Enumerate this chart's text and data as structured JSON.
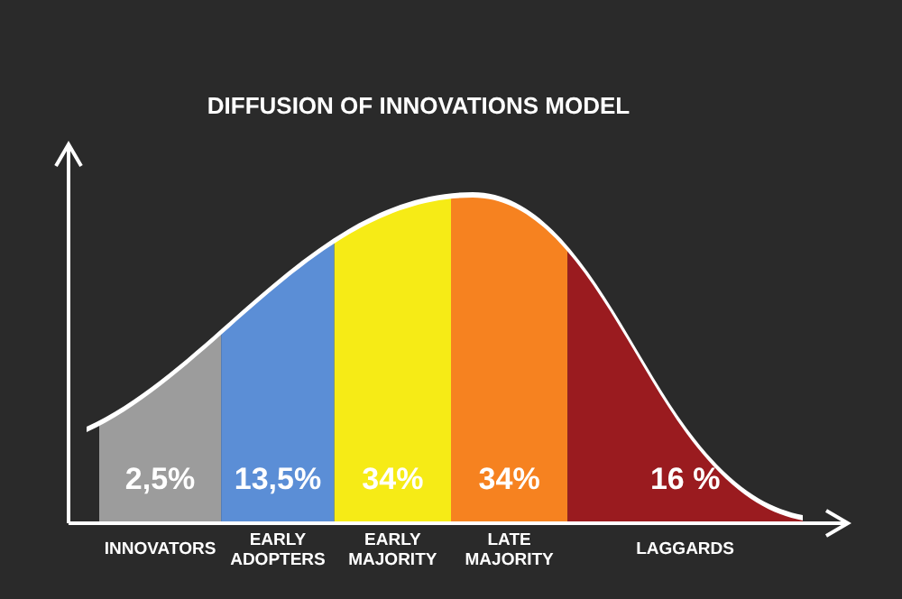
{
  "chart_data": {
    "type": "other",
    "title": "DIFFUSION OF INNOVATIONS MODEL",
    "categories": [
      "INNOVATORS",
      "EARLY ADOPTERS",
      "EARLY MAJORITY",
      "LATE MAJORITY",
      "LAGGARDS"
    ],
    "values": [
      2.5,
      13.5,
      34,
      34,
      16
    ],
    "value_labels": [
      "2,5%",
      "13,5%",
      "34%",
      "34%",
      "16 %"
    ],
    "colors": [
      "#9c9c9c",
      "#5b8ed6",
      "#f6eb16",
      "#f68220",
      "#9a1b1f"
    ]
  }
}
